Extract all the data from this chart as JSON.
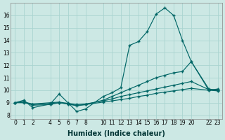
{
  "xlabel": "Humidex (Indice chaleur)",
  "bg_color": "#cce8e4",
  "grid_color": "#aad4d0",
  "line_color": "#006666",
  "xlim": [
    -0.5,
    23.5
  ],
  "ylim": [
    7.7,
    17.0
  ],
  "yticks": [
    8,
    9,
    10,
    11,
    12,
    13,
    14,
    15,
    16
  ],
  "xtick_positions": [
    0,
    1,
    2,
    4,
    5,
    6,
    7,
    8,
    10,
    11,
    12,
    13,
    14,
    15,
    16,
    17,
    18,
    19,
    20,
    22,
    23
  ],
  "xtick_labels": [
    "0",
    "1",
    "2",
    "4",
    "5",
    "6",
    "7",
    "8",
    "10",
    "11",
    "12",
    "13",
    "14",
    "15",
    "16",
    "17",
    "18",
    "19",
    "20",
    "22",
    "23"
  ],
  "series": [
    {
      "x": [
        0,
        1,
        2,
        4,
        5,
        6,
        7,
        8,
        10,
        11,
        12,
        13,
        14,
        15,
        16,
        17,
        18,
        19,
        20,
        22,
        23
      ],
      "y": [
        9.0,
        9.2,
        8.6,
        8.9,
        9.7,
        9.0,
        8.3,
        8.5,
        9.5,
        9.8,
        10.2,
        13.6,
        13.9,
        14.7,
        16.1,
        16.6,
        16.0,
        14.0,
        12.3,
        10.0,
        10.1
      ]
    },
    {
      "x": [
        0,
        1,
        2,
        4,
        5,
        6,
        7,
        8,
        10,
        11,
        12,
        13,
        14,
        15,
        16,
        17,
        18,
        19,
        20,
        22,
        23
      ],
      "y": [
        9.0,
        9.1,
        8.8,
        8.85,
        9.0,
        8.9,
        8.75,
        8.85,
        9.2,
        9.5,
        9.8,
        10.1,
        10.4,
        10.7,
        11.0,
        11.2,
        11.4,
        11.5,
        12.3,
        10.1,
        10.0
      ]
    },
    {
      "x": [
        0,
        1,
        2,
        4,
        5,
        6,
        7,
        8,
        10,
        11,
        12,
        13,
        14,
        15,
        16,
        17,
        18,
        19,
        20,
        22,
        23
      ],
      "y": [
        9.0,
        9.05,
        8.9,
        9.0,
        9.05,
        8.95,
        8.85,
        8.9,
        9.15,
        9.3,
        9.5,
        9.65,
        9.8,
        9.95,
        10.1,
        10.25,
        10.4,
        10.55,
        10.7,
        10.05,
        10.0
      ]
    },
    {
      "x": [
        0,
        1,
        2,
        4,
        5,
        6,
        7,
        8,
        10,
        11,
        12,
        13,
        14,
        15,
        16,
        17,
        18,
        19,
        20,
        22,
        23
      ],
      "y": [
        9.0,
        9.0,
        8.85,
        8.95,
        9.0,
        8.9,
        8.8,
        8.85,
        9.05,
        9.15,
        9.25,
        9.35,
        9.5,
        9.6,
        9.75,
        9.85,
        9.95,
        10.05,
        10.15,
        10.0,
        9.95
      ]
    }
  ],
  "tick_fontsize": 5.5,
  "label_fontsize": 7.0,
  "label_fontweight": "bold",
  "label_color": "#003333",
  "marker": "+",
  "markersize": 3.0,
  "linewidth": 0.85
}
